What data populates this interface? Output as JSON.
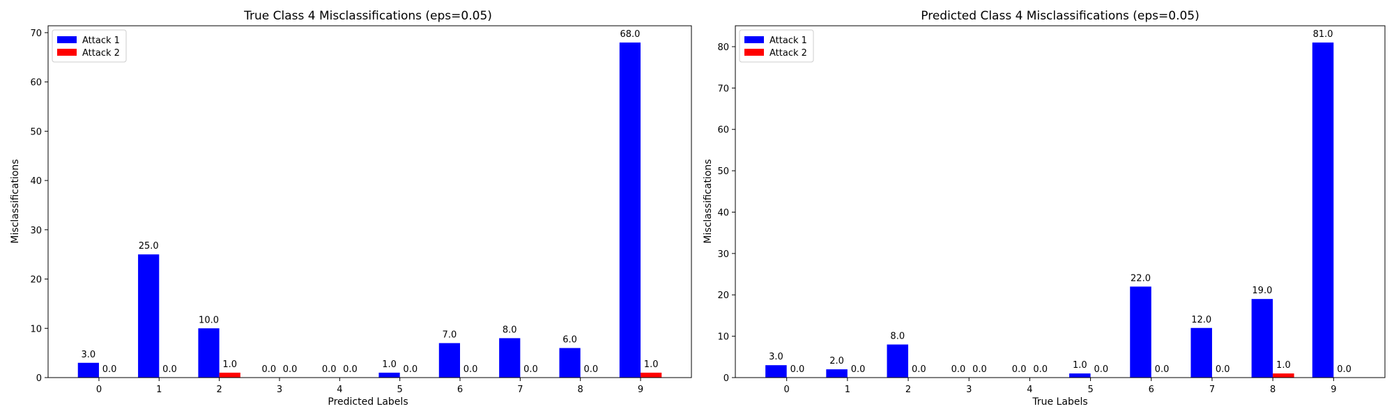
{
  "colors": {
    "attack1": "#0000ff",
    "attack2": "#ff0000"
  },
  "chart_data": [
    {
      "type": "bar",
      "title": "True Class 4 Misclassifications (eps=0.05)",
      "xlabel": "Predicted Labels",
      "ylabel": "Misclassifications",
      "categories": [
        "0",
        "1",
        "2",
        "3",
        "4",
        "5",
        "6",
        "7",
        "8",
        "9"
      ],
      "series": [
        {
          "name": "Attack 1",
          "values": [
            3.0,
            25.0,
            10.0,
            0.0,
            0.0,
            1.0,
            7.0,
            8.0,
            6.0,
            68.0
          ]
        },
        {
          "name": "Attack 2",
          "values": [
            0.0,
            0.0,
            1.0,
            0.0,
            0.0,
            0.0,
            0.0,
            0.0,
            0.0,
            1.0
          ]
        }
      ],
      "ylim": [
        0,
        71.4
      ],
      "yticks": [
        0,
        10,
        20,
        30,
        40,
        50,
        60,
        70
      ],
      "legend": "upper-left",
      "grid": false
    },
    {
      "type": "bar",
      "title": "Predicted Class 4 Misclassifications (eps=0.05)",
      "xlabel": "True Labels",
      "ylabel": "Misclassifications",
      "categories": [
        "0",
        "1",
        "2",
        "3",
        "4",
        "5",
        "6",
        "7",
        "8",
        "9"
      ],
      "series": [
        {
          "name": "Attack 1",
          "values": [
            3.0,
            2.0,
            8.0,
            0.0,
            0.0,
            1.0,
            22.0,
            12.0,
            19.0,
            81.0
          ]
        },
        {
          "name": "Attack 2",
          "values": [
            0.0,
            0.0,
            0.0,
            0.0,
            0.0,
            0.0,
            0.0,
            0.0,
            1.0,
            0.0
          ]
        }
      ],
      "ylim": [
        0,
        85.05
      ],
      "yticks": [
        0,
        10,
        20,
        30,
        40,
        50,
        60,
        70,
        80
      ],
      "legend": "upper-left",
      "grid": false
    }
  ]
}
